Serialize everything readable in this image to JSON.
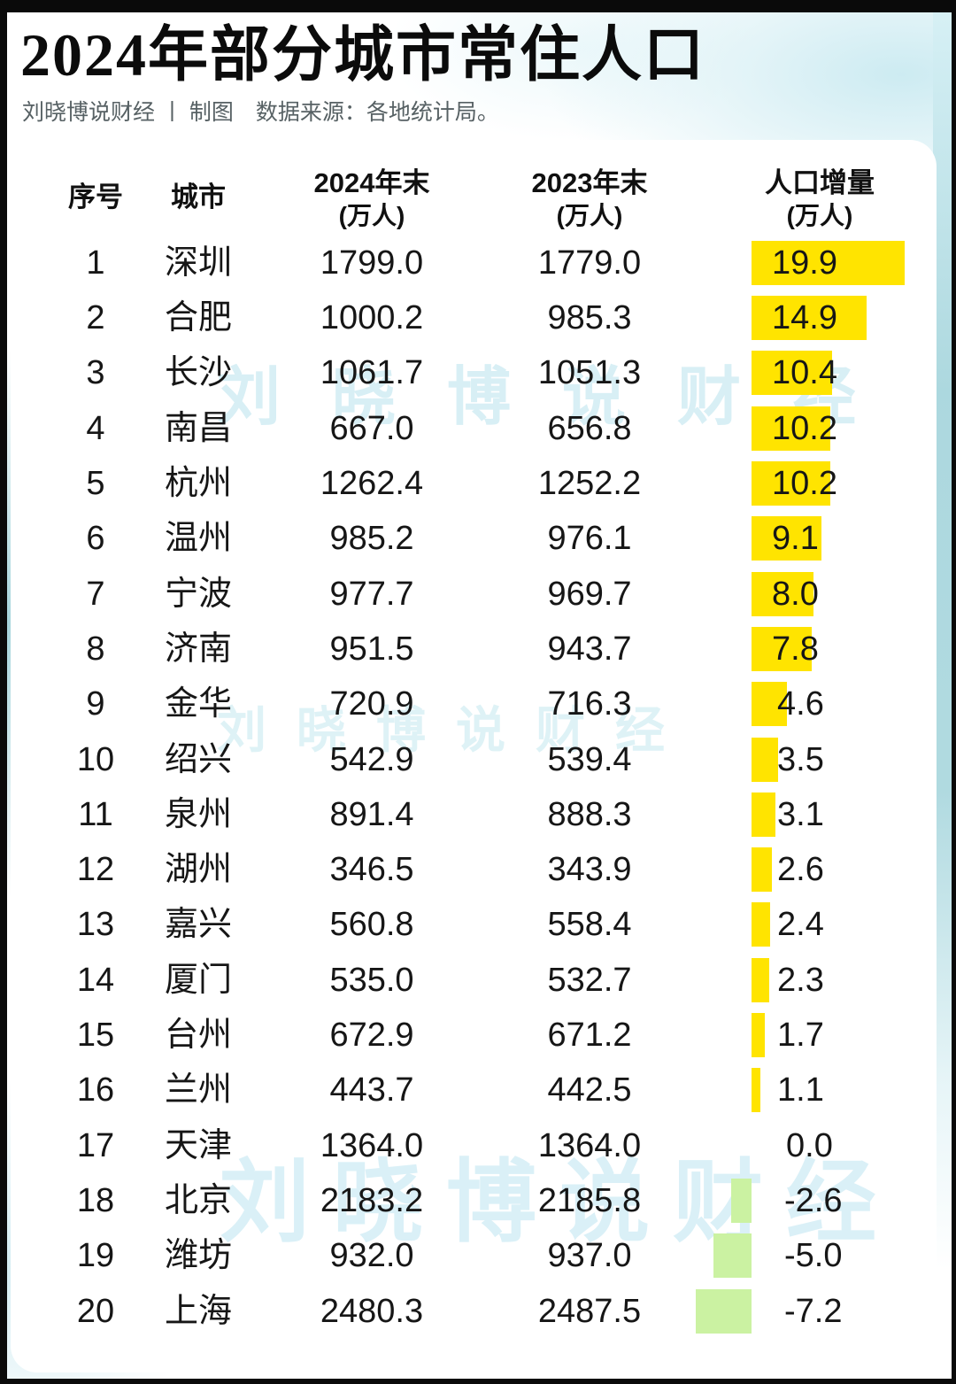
{
  "title": "2024年部分城市常住人口",
  "subtitle": "刘晓博说财经 丨 制图　数据来源：各地统计局。",
  "watermark_text": "刘晓博说财经",
  "table_header": {
    "col_index": "序号",
    "col_city": "城市",
    "col_2024": "2024年末",
    "col_2023": "2023年末",
    "col_delta": "人口增量",
    "unit": "(万人)"
  },
  "colors": {
    "positive_bar": "#FFE400",
    "negative_bar": "#CBF2A2",
    "edge_wash": "#A8D6DD"
  },
  "chart_data": {
    "type": "bar",
    "orientation": "horizontal",
    "title": "2024年部分城市常住人口",
    "subtitle": "刘晓博说财经 丨 制图　数据来源：各地统计局。",
    "columns": [
      "序号",
      "城市",
      "2024年末(万人)",
      "2023年末(万人)",
      "人口增量(万人)"
    ],
    "categories": [
      "深圳",
      "合肥",
      "长沙",
      "南昌",
      "杭州",
      "温州",
      "宁波",
      "济南",
      "金华",
      "绍兴",
      "泉州",
      "湖州",
      "嘉兴",
      "厦门",
      "台州",
      "兰州",
      "天津",
      "北京",
      "潍坊",
      "上海"
    ],
    "series": [
      {
        "name": "2024年末(万人)",
        "values": [
          1799.0,
          1000.2,
          1061.7,
          667.0,
          1262.4,
          985.2,
          977.7,
          951.5,
          720.9,
          542.9,
          891.4,
          346.5,
          560.8,
          535.0,
          672.9,
          443.7,
          1364.0,
          2183.2,
          932.0,
          2480.3
        ]
      },
      {
        "name": "2023年末(万人)",
        "values": [
          1779.0,
          985.3,
          1051.3,
          656.8,
          1252.2,
          976.1,
          969.7,
          943.7,
          716.3,
          539.4,
          888.3,
          343.9,
          558.4,
          532.7,
          671.2,
          442.5,
          1364.0,
          2185.8,
          937.0,
          2487.5
        ]
      },
      {
        "name": "人口增量(万人)",
        "values": [
          19.9,
          14.9,
          10.4,
          10.2,
          10.2,
          9.1,
          8.0,
          7.8,
          4.6,
          3.5,
          3.1,
          2.6,
          2.4,
          2.3,
          1.7,
          1.1,
          0.0,
          -2.6,
          -5.0,
          -7.2
        ]
      }
    ],
    "bar_color_positive": "#FFE400",
    "bar_color_negative": "#CBF2A2",
    "legend": "none",
    "grid": false
  }
}
